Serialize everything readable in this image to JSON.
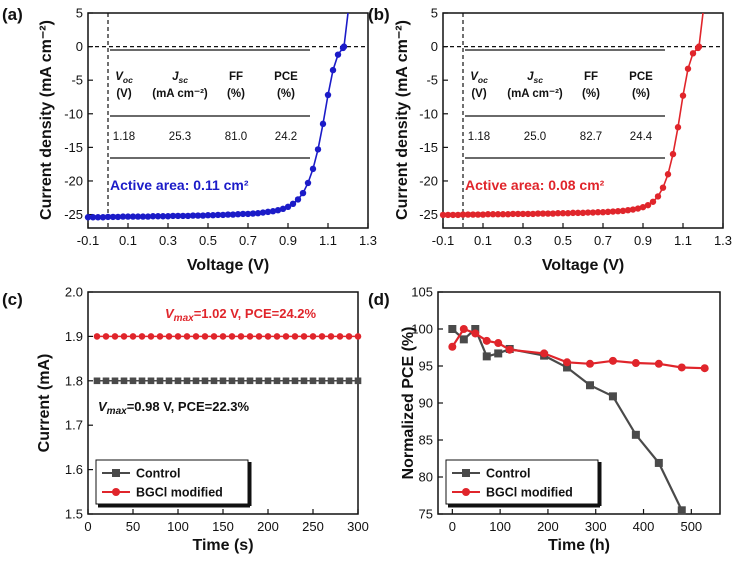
{
  "colors": {
    "blue": "#1b1bc8",
    "red": "#e0252b",
    "gray": "#4a4a4a",
    "text": "#111111"
  },
  "chart_data": [
    {
      "panel": "(a)",
      "type": "line",
      "xlabel": "Voltage (V)",
      "ylabel": "Current density (mA cm⁻²)",
      "xlim": [
        -0.1,
        1.3
      ],
      "ylim": [
        -27,
        5
      ],
      "xticks": [
        "-0.1",
        "0.1",
        "0.3",
        "0.5",
        "0.7",
        "0.9",
        "1.1",
        "1.3"
      ],
      "yticks": [
        "5",
        "0",
        "-5",
        "-10",
        "-15",
        "-20",
        "-25"
      ],
      "series": [
        {
          "color": "#1b1bc8",
          "x": [
            -0.1,
            -0.075,
            -0.05,
            -0.025,
            0,
            0.025,
            0.05,
            0.075,
            0.1,
            0.125,
            0.15,
            0.175,
            0.2,
            0.225,
            0.25,
            0.275,
            0.3,
            0.325,
            0.35,
            0.375,
            0.4,
            0.425,
            0.45,
            0.475,
            0.5,
            0.525,
            0.55,
            0.575,
            0.6,
            0.625,
            0.65,
            0.675,
            0.7,
            0.725,
            0.75,
            0.775,
            0.8,
            0.825,
            0.85,
            0.875,
            0.9,
            0.925,
            0.95,
            0.975,
            1.0,
            1.025,
            1.05,
            1.075,
            1.1,
            1.125,
            1.15,
            1.175,
            1.18,
            1.2
          ],
          "y": [
            -25.4,
            -25.4,
            -25.4,
            -25.4,
            -25.35,
            -25.35,
            -25.35,
            -25.3,
            -25.3,
            -25.3,
            -25.3,
            -25.3,
            -25.3,
            -25.25,
            -25.25,
            -25.25,
            -25.25,
            -25.2,
            -25.2,
            -25.2,
            -25.2,
            -25.15,
            -25.15,
            -25.15,
            -25.1,
            -25.1,
            -25.05,
            -25.05,
            -25.0,
            -25.0,
            -24.95,
            -24.9,
            -24.9,
            -24.85,
            -24.8,
            -24.7,
            -24.6,
            -24.5,
            -24.35,
            -24.15,
            -23.85,
            -23.4,
            -22.75,
            -21.8,
            -20.3,
            -18.2,
            -15.3,
            -11.5,
            -7.2,
            -3.5,
            -1.2,
            -0.2,
            0,
            5.0
          ]
        }
      ],
      "table": {
        "headers": [
          "V",
          "J",
          "FF",
          "PCE"
        ],
        "header_subscripts": [
          "oc",
          "sc",
          "",
          ""
        ],
        "units": [
          "(V)",
          "(mA cm⁻²)",
          "(%)",
          "(%)"
        ],
        "values": [
          "1.18",
          "25.3",
          "81.0",
          "24.2"
        ]
      },
      "annotation": "Active area: 0.11 cm²"
    },
    {
      "panel": "(b)",
      "type": "line",
      "xlabel": "Voltage (V)",
      "ylabel": "Current density (mA cm⁻²)",
      "xlim": [
        -0.1,
        1.3
      ],
      "ylim": [
        -27,
        5
      ],
      "xticks": [
        "-0.1",
        "0.1",
        "0.3",
        "0.5",
        "0.7",
        "0.9",
        "1.1",
        "1.3"
      ],
      "yticks": [
        "5",
        "0",
        "-5",
        "-10",
        "-15",
        "-20",
        "-25"
      ],
      "series": [
        {
          "color": "#e0252b",
          "x": [
            -0.1,
            -0.075,
            -0.05,
            -0.025,
            0,
            0.025,
            0.05,
            0.075,
            0.1,
            0.125,
            0.15,
            0.175,
            0.2,
            0.225,
            0.25,
            0.275,
            0.3,
            0.325,
            0.35,
            0.375,
            0.4,
            0.425,
            0.45,
            0.475,
            0.5,
            0.525,
            0.55,
            0.575,
            0.6,
            0.625,
            0.65,
            0.675,
            0.7,
            0.725,
            0.75,
            0.775,
            0.8,
            0.825,
            0.85,
            0.875,
            0.9,
            0.925,
            0.95,
            0.975,
            1.0,
            1.025,
            1.05,
            1.075,
            1.1,
            1.125,
            1.15,
            1.175,
            1.18,
            1.2
          ],
          "y": [
            -25.05,
            -25.05,
            -25.05,
            -25.05,
            -25.0,
            -25.0,
            -25.0,
            -25.0,
            -25.0,
            -24.95,
            -24.95,
            -24.95,
            -24.95,
            -24.95,
            -24.9,
            -24.9,
            -24.9,
            -24.9,
            -24.9,
            -24.85,
            -24.85,
            -24.85,
            -24.85,
            -24.8,
            -24.8,
            -24.8,
            -24.75,
            -24.75,
            -24.75,
            -24.7,
            -24.7,
            -24.65,
            -24.65,
            -24.6,
            -24.55,
            -24.5,
            -24.45,
            -24.35,
            -24.25,
            -24.1,
            -23.9,
            -23.6,
            -23.1,
            -22.3,
            -21.0,
            -19.0,
            -16.0,
            -12.0,
            -7.3,
            -3.3,
            -1.0,
            -0.2,
            0,
            5.0
          ]
        }
      ],
      "table": {
        "headers": [
          "V",
          "J",
          "FF",
          "PCE"
        ],
        "header_subscripts": [
          "oc",
          "sc",
          "",
          ""
        ],
        "units": [
          "(V)",
          "(mA cm⁻²)",
          "(%)",
          "(%)"
        ],
        "values": [
          "1.18",
          "25.0",
          "82.7",
          "24.4"
        ]
      },
      "annotation": "Active area: 0.08 cm²"
    },
    {
      "panel": "(c)",
      "type": "line",
      "xlabel": "Time (s)",
      "ylabel": "Current (mA)",
      "xlim": [
        0,
        300
      ],
      "ylim": [
        1.5,
        2.0
      ],
      "xticks": [
        "0",
        "50",
        "100",
        "150",
        "200",
        "250",
        "300"
      ],
      "yticks": [
        "2.0",
        "1.9",
        "1.8",
        "1.7",
        "1.6",
        "1.5"
      ],
      "series": [
        {
          "name": "Control",
          "color": "#4a4a4a",
          "marker": "square",
          "x_start": 10,
          "x_end": 300,
          "x_step": 10,
          "value": 1.8
        },
        {
          "name": "BGCl modified",
          "color": "#e0252b",
          "marker": "circle",
          "x_start": 10,
          "x_end": 300,
          "x_step": 10,
          "value": 1.9
        }
      ],
      "annotation_red": {
        "sym": "V",
        "sub": "max",
        "rest": "=1.02 V, PCE=24.2%"
      },
      "annotation_black": {
        "sym": "V",
        "sub": "max",
        "rest": "=0.98 V, PCE=22.3%"
      },
      "legend": [
        "Control",
        "BGCl modified"
      ]
    },
    {
      "panel": "(d)",
      "type": "line",
      "xlabel": "Time (h)",
      "ylabel": "Normalized PCE (%)",
      "xlim": [
        -30,
        560
      ],
      "ylim": [
        75,
        105
      ],
      "xticks": [
        "0",
        "100",
        "200",
        "300",
        "400",
        "500"
      ],
      "yticks": [
        "105",
        "100",
        "95",
        "90",
        "85",
        "80",
        "75"
      ],
      "series": [
        {
          "name": "Control",
          "color": "#4a4a4a",
          "marker": "square",
          "x": [
            0,
            24,
            48,
            72,
            96,
            120,
            192,
            240,
            288,
            336,
            384,
            432,
            480
          ],
          "y": [
            100,
            98.6,
            100,
            96.3,
            96.7,
            97.3,
            96.4,
            94.8,
            92.4,
            90.9,
            85.7,
            81.9,
            75.5
          ]
        },
        {
          "name": "BGCl modified",
          "color": "#e0252b",
          "marker": "circle",
          "x": [
            0,
            24,
            48,
            72,
            96,
            120,
            192,
            240,
            288,
            336,
            384,
            432,
            480,
            528
          ],
          "y": [
            97.6,
            100,
            99.4,
            98.4,
            98.1,
            97.2,
            96.7,
            95.5,
            95.3,
            95.7,
            95.4,
            95.3,
            94.8,
            94.7
          ]
        }
      ],
      "legend": [
        "Control",
        "BGCl modified"
      ]
    }
  ]
}
